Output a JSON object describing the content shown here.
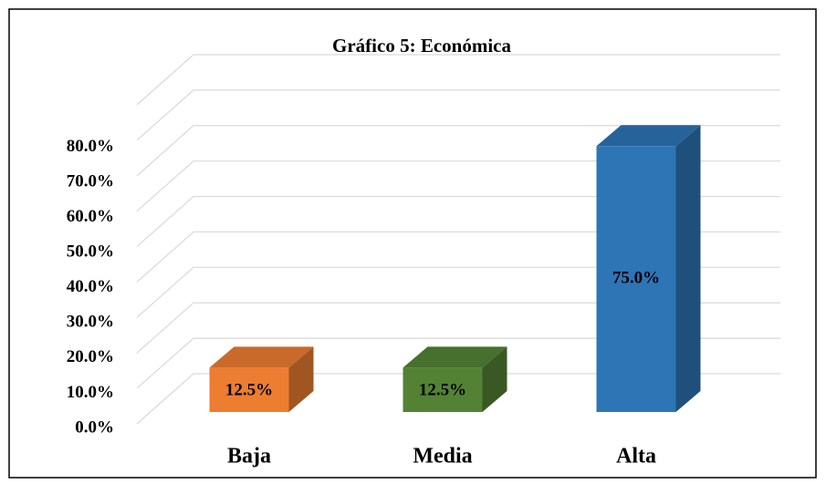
{
  "chart_data": {
    "type": "bar3d",
    "title": "Gráfico 5: Económica",
    "categories": [
      "Baja",
      "Media",
      "Alta"
    ],
    "values": [
      12.5,
      12.5,
      75
    ],
    "value_labels": [
      "12.5%",
      "12.5%",
      "75.0%"
    ],
    "colors": [
      "#ed7d31",
      "#548235",
      "#2e75b6"
    ],
    "ylim": [
      0,
      90
    ],
    "yticks": [
      {
        "value": 0,
        "label": "0.0%"
      },
      {
        "value": 10,
        "label": "10.0%"
      },
      {
        "value": 20,
        "label": "20.0%"
      },
      {
        "value": 30,
        "label": "30.0%"
      },
      {
        "value": 40,
        "label": "40.0%"
      },
      {
        "value": 50,
        "label": "50.0%"
      },
      {
        "value": 60,
        "label": "60.0%"
      },
      {
        "value": 70,
        "label": "70.0%"
      },
      {
        "value": 80,
        "label": "80.0%"
      }
    ],
    "grid": true
  }
}
